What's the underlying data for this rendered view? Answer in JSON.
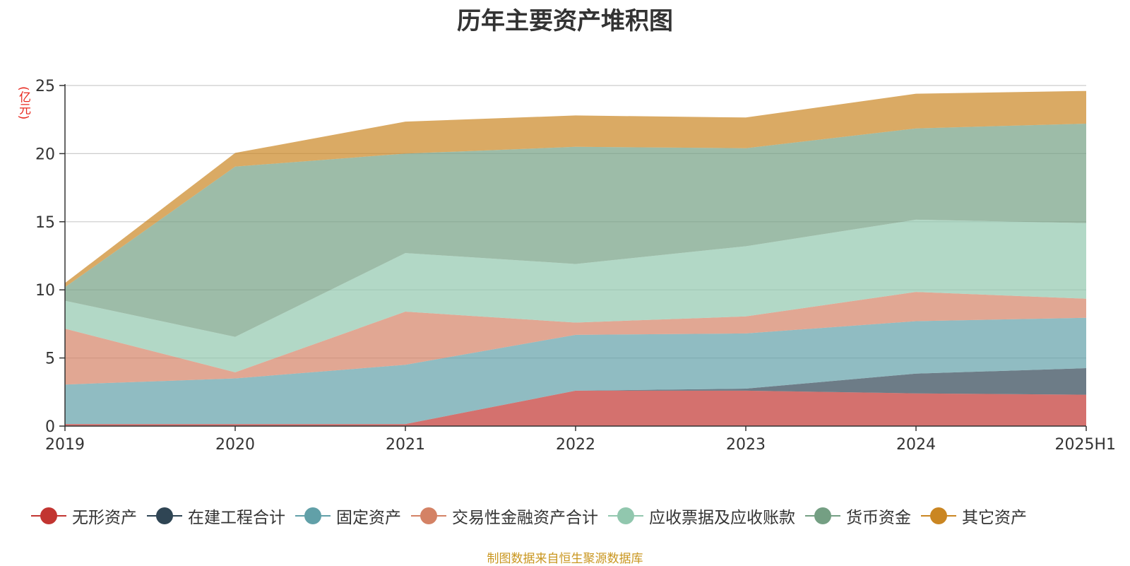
{
  "chart_data": {
    "type": "area",
    "stacked": true,
    "title": "历年主要资产堆积图",
    "ylabel": "亿元",
    "ylim": [
      0,
      25
    ],
    "yticks": [
      0,
      5,
      10,
      15,
      20,
      25
    ],
    "grid": true,
    "legend_position": "bottom",
    "categories": [
      "2019",
      "2020",
      "2021",
      "2022",
      "2023",
      "2024",
      "2025H1"
    ],
    "series": [
      {
        "name": "无形资产",
        "color": "#c23531",
        "values": [
          0.15,
          0.15,
          0.15,
          2.6,
          2.6,
          2.4,
          2.3
        ]
      },
      {
        "name": "在建工程合计",
        "color": "#2f4554",
        "values": [
          0.0,
          0.0,
          0.0,
          0.0,
          0.15,
          1.45,
          1.95
        ]
      },
      {
        "name": "固定资产",
        "color": "#61a0a8",
        "values": [
          2.9,
          3.35,
          4.35,
          4.1,
          4.05,
          3.85,
          3.7
        ]
      },
      {
        "name": "交易性金融资产合计",
        "color": "#d48265",
        "values": [
          4.1,
          0.45,
          3.9,
          0.9,
          1.25,
          2.15,
          1.4
        ]
      },
      {
        "name": "应收票据及应收账款",
        "color": "#91c7ae",
        "values": [
          2.05,
          2.6,
          4.3,
          4.3,
          5.15,
          5.3,
          5.55
        ]
      },
      {
        "name": "货币资金",
        "color": "#749f83",
        "values": [
          1.0,
          12.5,
          7.3,
          8.6,
          7.2,
          6.7,
          7.3
        ]
      },
      {
        "name": "其它资产",
        "color": "#ca8622",
        "values": [
          0.3,
          1.0,
          2.35,
          2.3,
          2.25,
          2.55,
          2.4
        ]
      }
    ]
  },
  "header": {
    "title": "历年主要资产堆积图",
    "unit": "(亿元)"
  },
  "footer": {
    "source": "制图数据来自恒生聚源数据库"
  }
}
